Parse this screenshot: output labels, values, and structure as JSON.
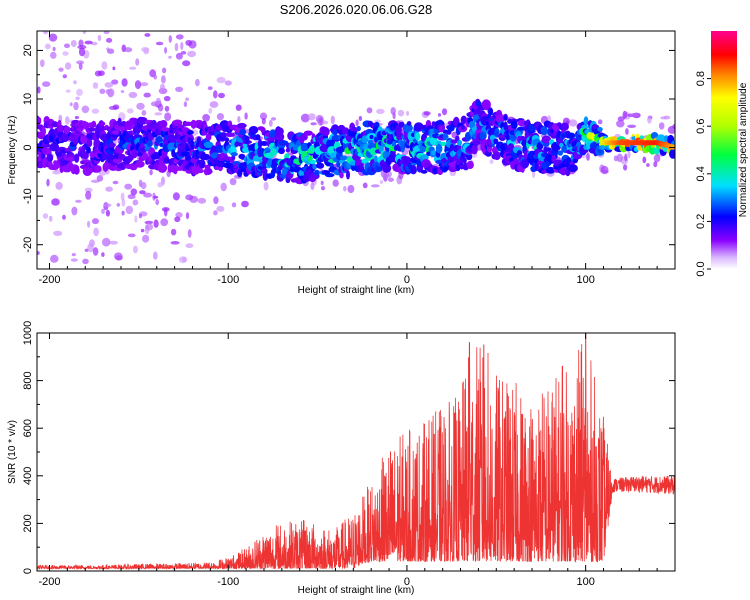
{
  "title": "S206.2026.020.06.06.G28",
  "chart_data": [
    {
      "type": "heatmap",
      "name": "spectrogram",
      "xlabel": "Height of straight line (km)",
      "ylabel": "Frequency (Hz)",
      "xlim": [
        -207,
        150
      ],
      "ylim": [
        -25,
        24
      ],
      "x_ticks": [
        -200,
        -100,
        0,
        100
      ],
      "x_tick_labels": [
        "-200",
        "-100",
        "0",
        "100"
      ],
      "y_ticks": [
        -20,
        -10,
        0,
        10,
        20
      ],
      "y_tick_labels": [
        "-20",
        "-10",
        "0",
        "10",
        "20"
      ],
      "colorbar": {
        "label": "Normalized spectral amplitude",
        "range": [
          0,
          1
        ],
        "ticks": [
          0,
          0.2,
          0.4,
          0.6,
          0.8
        ],
        "tick_labels": [
          "0.0",
          "0.2",
          "0.4",
          "0.6",
          "0.8"
        ],
        "colors": [
          "#ffffff",
          "#8a00ff",
          "#0000ff",
          "#00e0ff",
          "#00ff00",
          "#ffff00",
          "#ff8000",
          "#ff0000",
          "#ff0090"
        ]
      },
      "center_track": {
        "x": [
          -205,
          -180,
          -150,
          -120,
          -100,
          -80,
          -60,
          -40,
          -20,
          0,
          20,
          35,
          40,
          50,
          70,
          95,
          100,
          110,
          120,
          140,
          150
        ],
        "freq": [
          1,
          0,
          1,
          0,
          0,
          -1,
          -2,
          -1,
          0,
          0,
          0,
          1,
          6,
          2,
          0,
          0,
          3,
          1,
          1,
          1,
          0
        ],
        "amplitude": [
          0.25,
          0.25,
          0.3,
          0.3,
          0.35,
          0.4,
          0.45,
          0.45,
          0.45,
          0.45,
          0.4,
          0.35,
          0.35,
          0.35,
          0.4,
          0.35,
          0.55,
          0.65,
          0.8,
          0.85,
          0.7
        ]
      }
    },
    {
      "type": "line",
      "name": "snr",
      "xlabel": "Height of straight line (km)",
      "ylabel": "SNR (10 * v/v)",
      "xlim": [
        -207,
        150
      ],
      "ylim": [
        0,
        1000
      ],
      "x_ticks": [
        -200,
        -100,
        0,
        100
      ],
      "x_tick_labels": [
        "-200",
        "-100",
        "0",
        "100"
      ],
      "y_ticks": [
        0,
        200,
        400,
        600,
        800,
        1000
      ],
      "y_tick_labels": [
        "0",
        "200",
        "400",
        "600",
        "800",
        "1000"
      ],
      "series": [
        {
          "name": "SNR",
          "color": "#ee3333",
          "x": [
            -207,
            -180,
            -150,
            -120,
            -110,
            -100,
            -90,
            -80,
            -70,
            -60,
            -50,
            -40,
            -35,
            -30,
            -25,
            -20,
            -10,
            0,
            10,
            20,
            30,
            35,
            40,
            45,
            50,
            60,
            70,
            80,
            90,
            100,
            110,
            115,
            130,
            150
          ],
          "envelope_upper": [
            25,
            25,
            30,
            35,
            40,
            60,
            100,
            180,
            210,
            220,
            200,
            180,
            220,
            250,
            320,
            380,
            540,
            600,
            640,
            700,
            750,
            960,
            960,
            940,
            840,
            800,
            760,
            820,
            860,
            1000,
            660,
            390,
            400,
            400
          ],
          "envelope_lower": [
            10,
            10,
            10,
            10,
            10,
            10,
            10,
            10,
            10,
            10,
            10,
            10,
            10,
            10,
            30,
            40,
            40,
            40,
            40,
            40,
            40,
            40,
            40,
            40,
            40,
            40,
            40,
            40,
            40,
            40,
            40,
            330,
            330,
            320
          ],
          "peaks": [
            {
              "x": 35,
              "y": 960
            },
            {
              "x": 43,
              "y": 950
            },
            {
              "x": 100,
              "y": 1000
            },
            {
              "x": 87,
              "y": 860
            }
          ]
        }
      ]
    }
  ]
}
